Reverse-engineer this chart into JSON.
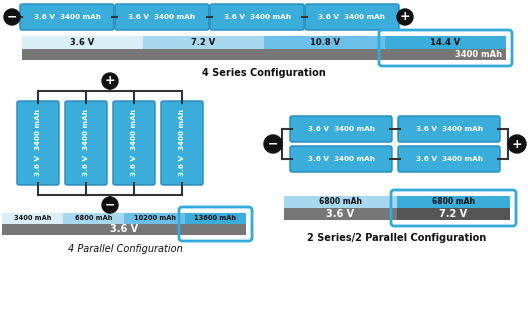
{
  "bg_color": "#ffffff",
  "battery_color": "#3baddb",
  "battery_border": "#2288bb",
  "terminal_color": "#111111",
  "bar_blue_lightest": "#daeef8",
  "bar_blue_light": "#a8d8f0",
  "bar_blue_mid": "#6bbfe8",
  "bar_blue_dark": "#3baddb",
  "bar_gray": "#999999",
  "bar_gray_dark": "#777777",
  "highlight_border": "#33aadd",
  "text_dark": "#111111",
  "text_white": "#ffffff",
  "title_series": "4 Series Configuration",
  "title_parallel": "4 Parallel Configuration",
  "title_series_parallel": "2 Series/2 Parallel Configuration",
  "battery_label": "3.6 V  3400 mAh",
  "battery_label_vert": "3.6 V  3400 mAh",
  "series_voltage_labels": [
    "3.6 V",
    "7.2 V",
    "10.8 V",
    "14.4 V"
  ],
  "series_mah_label": "3400 mAh",
  "parallel_mah_labels": [
    "3400 mAh",
    "6800 mAh",
    "10200 mAh",
    "13600 mAh"
  ],
  "parallel_voltage_label": "3.6 V",
  "sp_mah_labels": [
    "6800 mAh",
    "6800 mAh"
  ],
  "sp_voltage_labels": [
    "3.6 V",
    "7.2 V"
  ]
}
